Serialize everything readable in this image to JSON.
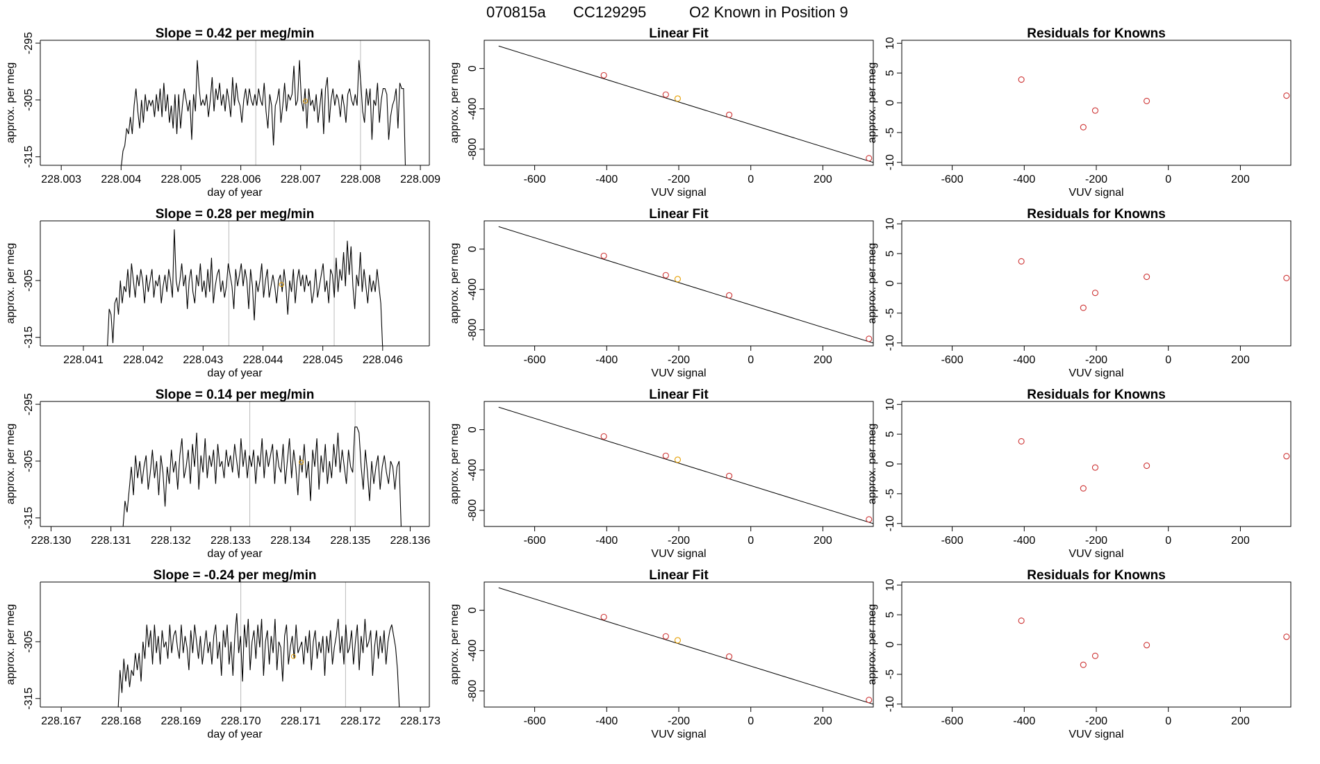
{
  "header": {
    "run_id": "070815a",
    "tank_id": "CC129295",
    "title_text": "O2 Known in Position  9"
  },
  "colors": {
    "line": "#000000",
    "frame": "#000000",
    "vline": "#bbbbbb",
    "known_point": "#cd3333",
    "position_point": "#e69f00"
  },
  "chart_data": [
    {
      "type": "line",
      "title": "Slope =  0.42  per meg/min",
      "xlabel": "day of year",
      "ylabel": "approx. per meg",
      "xlim": [
        228.00265,
        228.00915
      ],
      "ylim": [
        -316.5,
        -294.5
      ],
      "xticks": [
        "228.003",
        "228.004",
        "228.005",
        "228.006",
        "228.007",
        "228.008",
        "228.009"
      ],
      "yticks": [
        "-295",
        "-305",
        "-315"
      ],
      "vlines": [
        228.00625,
        228.008
      ],
      "highlight_point": {
        "x": 228.00708,
        "y": -305.2
      },
      "series": [
        {
          "x_start": 228.004,
          "x_end": 228.00875,
          "values": [
            -317,
            -314,
            -313,
            -310,
            -311,
            -308,
            -311,
            -306,
            -303,
            -307,
            -310,
            -305,
            -309,
            -304,
            -307,
            -305,
            -306,
            -305,
            -308,
            -304,
            -307,
            -303,
            -308,
            -302,
            -307,
            -304,
            -309,
            -306,
            -310,
            -304,
            -311,
            -304,
            -310,
            -306,
            -303,
            -305,
            -307,
            -305,
            -312,
            -304,
            -307,
            -298,
            -303,
            -306,
            -305,
            -306,
            -304,
            -308,
            -305,
            -301,
            -307,
            -303,
            -305,
            -302,
            -306,
            -304,
            -307,
            -303,
            -305,
            -308,
            -301,
            -306,
            -302,
            -305,
            -306,
            -309,
            -305,
            -303,
            -306,
            -303,
            -305,
            -306,
            -304,
            -306,
            -303,
            -305,
            -306,
            -302,
            -307,
            -310,
            -304,
            -306,
            -313,
            -306,
            -305,
            -303,
            -309,
            -306,
            -302,
            -307,
            -304,
            -305,
            -304,
            -299,
            -306,
            -305,
            -298,
            -305,
            -307,
            -303,
            -310,
            -303,
            -306,
            -305,
            -307,
            -304,
            -309,
            -306,
            -303,
            -311,
            -303,
            -301,
            -309,
            -305,
            -303,
            -306,
            -304,
            -305,
            -308,
            -304,
            -306,
            -309,
            -304,
            -303,
            -305,
            -306,
            -304,
            -306,
            -298,
            -302,
            -307,
            -309,
            -303,
            -306,
            -303,
            -312,
            -305,
            -306,
            -302,
            -309,
            -305,
            -303,
            -303,
            -304,
            -312,
            -308,
            -306,
            -305,
            -303,
            -310,
            -302,
            -303,
            -303,
            -317
          ]
        }
      ]
    },
    {
      "type": "scatter",
      "title": "Linear Fit",
      "xlabel": "VUV signal",
      "ylabel": "approx. per meg",
      "xlim": [
        -740,
        340
      ],
      "ylim": [
        -960,
        280
      ],
      "xticks": [
        "-600",
        "-400",
        "-200",
        "0",
        "200"
      ],
      "yticks": [
        "0",
        "-400",
        "-800"
      ],
      "fit_line": {
        "x": [
          -700,
          340
        ],
        "y": [
          223,
          -932
        ]
      },
      "points": {
        "x": [
          -408,
          -236,
          -203,
          -60,
          328
        ],
        "y": [
          -67,
          -259,
          -298,
          -459,
          -890
        ]
      },
      "highlight_index": 2
    },
    {
      "type": "scatter",
      "title": "Residuals for Knowns",
      "xlabel": "VUV signal",
      "ylabel": "approx. per meg",
      "xlim": [
        -740,
        340
      ],
      "ylim": [
        -10.5,
        10.5
      ],
      "xticks": [
        "-600",
        "-400",
        "-200",
        "0",
        "200"
      ],
      "yticks": [
        "10",
        "5",
        "0",
        "-5",
        "-10"
      ],
      "points": {
        "x": [
          -408,
          -236,
          -203,
          -60,
          328
        ],
        "y": [
          3.9,
          -4.1,
          -1.3,
          0.3,
          1.2
        ]
      }
    },
    {
      "type": "line",
      "title": "Slope =  0.28  per meg/min",
      "xlabel": "day of year",
      "ylabel": "approx. per meg",
      "xlim": [
        228.04028,
        228.04678
      ],
      "ylim": [
        -316.5,
        -294.5
      ],
      "xticks": [
        "228.041",
        "228.042",
        "228.043",
        "228.044",
        "228.045",
        "228.046"
      ],
      "yticks": [
        "-305",
        "-315"
      ],
      "vlines": [
        228.04343,
        228.04519
      ],
      "highlight_point": {
        "x": 228.04431,
        "y": -305.7
      },
      "series": [
        {
          "x_start": 228.0414,
          "x_end": 228.046,
          "values": [
            -317,
            -310,
            -311,
            -316,
            -309,
            -308,
            -311,
            -305,
            -309,
            -306,
            -307,
            -303,
            -308,
            -302,
            -305,
            -308,
            -304,
            -306,
            -303,
            -305,
            -309,
            -304,
            -307,
            -305,
            -303,
            -308,
            -305,
            -306,
            -304,
            -309,
            -306,
            -304,
            -307,
            -303,
            -305,
            -308,
            -296,
            -305,
            -307,
            -305,
            -302,
            -306,
            -304,
            -310,
            -305,
            -303,
            -307,
            -309,
            -304,
            -306,
            -302,
            -307,
            -305,
            -308,
            -303,
            -307,
            -301,
            -309,
            -306,
            -304,
            -303,
            -307,
            -305,
            -308,
            -306,
            -302,
            -304,
            -306,
            -310,
            -303,
            -306,
            -304,
            -302,
            -306,
            -303,
            -305,
            -310,
            -303,
            -306,
            -312,
            -305,
            -307,
            -305,
            -302,
            -308,
            -305,
            -303,
            -308,
            -306,
            -304,
            -306,
            -309,
            -305,
            -304,
            -307,
            -303,
            -306,
            -311,
            -305,
            -307,
            -303,
            -309,
            -305,
            -303,
            -306,
            -304,
            -307,
            -304,
            -306,
            -305,
            -309,
            -307,
            -303,
            -308,
            -306,
            -304,
            -302,
            -307,
            -305,
            -309,
            -303,
            -304,
            -308,
            -301,
            -307,
            -303,
            -305,
            -300,
            -306,
            -298,
            -304,
            -299,
            -306,
            -310,
            -304,
            -306,
            -300,
            -307,
            -303,
            -306,
            -309,
            -304,
            -307,
            -305,
            -307,
            -303,
            -306,
            -309,
            -317
          ]
        }
      ]
    },
    {
      "type": "scatter",
      "title": "Linear Fit",
      "xlabel": "VUV signal",
      "ylabel": "approx. per meg",
      "xlim": [
        -740,
        340
      ],
      "ylim": [
        -960,
        280
      ],
      "xticks": [
        "-600",
        "-400",
        "-200",
        "0",
        "200"
      ],
      "yticks": [
        "0",
        "-400",
        "-800"
      ],
      "fit_line": {
        "x": [
          -700,
          340
        ],
        "y": [
          223,
          -932
        ]
      },
      "points": {
        "x": [
          -408,
          -236,
          -203,
          -60,
          328
        ],
        "y": [
          -67,
          -259,
          -298,
          -459,
          -890
        ]
      },
      "highlight_index": 2
    },
    {
      "type": "scatter",
      "title": "Residuals for Knowns",
      "xlabel": "VUV signal",
      "ylabel": "approx. per meg",
      "xlim": [
        -740,
        340
      ],
      "ylim": [
        -10.5,
        10.5
      ],
      "xticks": [
        "-600",
        "-400",
        "-200",
        "0",
        "200"
      ],
      "yticks": [
        "10",
        "5",
        "0",
        "-5",
        "-10"
      ],
      "points": {
        "x": [
          -408,
          -236,
          -203,
          -60,
          328
        ],
        "y": [
          3.7,
          -4.1,
          -1.6,
          1.1,
          0.9
        ]
      }
    },
    {
      "type": "line",
      "title": "Slope =  0.14  per meg/min",
      "xlabel": "day of year",
      "ylabel": "approx. per meg",
      "xlim": [
        228.12982,
        228.13632
      ],
      "ylim": [
        -316.5,
        -294.5
      ],
      "xticks": [
        "228.130",
        "228.131",
        "228.132",
        "228.133",
        "228.134",
        "228.135",
        "228.136"
      ],
      "yticks": [
        "-295",
        "-305",
        "-315"
      ],
      "vlines": [
        228.13332,
        228.13508
      ],
      "highlight_point": {
        "x": 228.13418,
        "y": -305.2
      },
      "series": [
        {
          "x_start": 228.1312,
          "x_end": 228.13585,
          "values": [
            -317,
            -312,
            -314,
            -310,
            -306,
            -311,
            -304,
            -308,
            -305,
            -309,
            -306,
            -304,
            -310,
            -307,
            -303,
            -308,
            -305,
            -311,
            -304,
            -307,
            -313,
            -306,
            -309,
            -303,
            -307,
            -305,
            -310,
            -304,
            -301,
            -308,
            -306,
            -303,
            -309,
            -302,
            -306,
            -300,
            -310,
            -304,
            -307,
            -301,
            -308,
            -304,
            -306,
            -303,
            -309,
            -302,
            -306,
            -305,
            -308,
            -303,
            -306,
            -304,
            -307,
            -302,
            -305,
            -308,
            -301,
            -306,
            -303,
            -308,
            -304,
            -306,
            -303,
            -309,
            -304,
            -306,
            -301,
            -308,
            -303,
            -306,
            -304,
            -302,
            -309,
            -303,
            -306,
            -307,
            -302,
            -309,
            -305,
            -301,
            -308,
            -303,
            -306,
            -311,
            -304,
            -307,
            -302,
            -308,
            -305,
            -312,
            -303,
            -306,
            -301,
            -310,
            -304,
            -307,
            -302,
            -309,
            -305,
            -308,
            -302,
            -306,
            -300,
            -307,
            -303,
            -306,
            -309,
            -303,
            -306,
            -307,
            -299,
            -299,
            -300,
            -306,
            -310,
            -303,
            -307,
            -312,
            -305,
            -309,
            -306,
            -304,
            -310,
            -306,
            -304,
            -307,
            -309,
            -305,
            -306,
            -310,
            -306,
            -305,
            -317
          ]
        }
      ]
    },
    {
      "type": "scatter",
      "title": "Linear Fit",
      "xlabel": "VUV signal",
      "ylabel": "approx. per meg",
      "xlim": [
        -740,
        340
      ],
      "ylim": [
        -960,
        280
      ],
      "xticks": [
        "-600",
        "-400",
        "-200",
        "0",
        "200"
      ],
      "yticks": [
        "0",
        "-400",
        "-800"
      ],
      "fit_line": {
        "x": [
          -700,
          340
        ],
        "y": [
          223,
          -932
        ]
      },
      "points": {
        "x": [
          -408,
          -236,
          -203,
          -60,
          328
        ],
        "y": [
          -67,
          -259,
          -298,
          -459,
          -890
        ]
      },
      "highlight_index": 2
    },
    {
      "type": "scatter",
      "title": "Residuals for Knowns",
      "xlabel": "VUV signal",
      "ylabel": "approx. per meg",
      "xlim": [
        -740,
        340
      ],
      "ylim": [
        -10.5,
        10.5
      ],
      "xticks": [
        "-600",
        "-400",
        "-200",
        "0",
        "200"
      ],
      "yticks": [
        "10",
        "5",
        "0",
        "-5",
        "-10"
      ],
      "points": {
        "x": [
          -408,
          -236,
          -203,
          -60,
          328
        ],
        "y": [
          3.8,
          -4.1,
          -0.6,
          -0.3,
          1.3
        ]
      }
    },
    {
      "type": "line",
      "title": "Slope =  -0.24  per meg/min",
      "xlabel": "day of year",
      "ylabel": "approx. per meg",
      "xlim": [
        228.16665,
        228.17315
      ],
      "ylim": [
        -316.5,
        -294.5
      ],
      "xticks": [
        "228.167",
        "228.168",
        "228.169",
        "228.170",
        "228.171",
        "228.172",
        "228.173"
      ],
      "yticks": [
        "-305",
        "-315"
      ],
      "vlines": [
        228.17,
        228.17175
      ],
      "highlight_point": {
        "x": 228.17088,
        "y": -307.6
      },
      "series": [
        {
          "x_start": 228.16795,
          "x_end": 228.17265,
          "values": [
            -317,
            -310,
            -314,
            -308,
            -312,
            -309,
            -313,
            -310,
            -311,
            -307,
            -310,
            -307,
            -312,
            -305,
            -308,
            -302,
            -306,
            -303,
            -309,
            -302,
            -307,
            -304,
            -309,
            -303,
            -306,
            -305,
            -308,
            -302,
            -307,
            -304,
            -303,
            -306,
            -308,
            -302,
            -307,
            -304,
            -306,
            -310,
            -303,
            -307,
            -302,
            -305,
            -308,
            -304,
            -309,
            -306,
            -303,
            -307,
            -305,
            -309,
            -304,
            -302,
            -308,
            -305,
            -311,
            -303,
            -306,
            -302,
            -309,
            -305,
            -311,
            -304,
            -300,
            -307,
            -304,
            -312,
            -302,
            -306,
            -301,
            -310,
            -305,
            -303,
            -308,
            -302,
            -306,
            -301,
            -311,
            -305,
            -303,
            -309,
            -304,
            -307,
            -301,
            -310,
            -305,
            -306,
            -312,
            -304,
            -302,
            -309,
            -306,
            -304,
            -308,
            -302,
            -307,
            -306,
            -305,
            -309,
            -304,
            -307,
            -303,
            -310,
            -305,
            -303,
            -308,
            -305,
            -307,
            -304,
            -311,
            -304,
            -307,
            -303,
            -309,
            -306,
            -304,
            -301,
            -307,
            -304,
            -309,
            -302,
            -307,
            -306,
            -303,
            -309,
            -305,
            -302,
            -310,
            -304,
            -307,
            -301,
            -306,
            -305,
            -303,
            -311,
            -306,
            -303,
            -308,
            -304,
            -307,
            -303,
            -309,
            -305,
            -303,
            -302,
            -304,
            -306,
            -310,
            -317
          ]
        }
      ]
    },
    {
      "type": "scatter",
      "title": "Linear Fit",
      "xlabel": "VUV signal",
      "ylabel": "approx. per meg",
      "xlim": [
        -740,
        340
      ],
      "ylim": [
        -960,
        280
      ],
      "xticks": [
        "-600",
        "-400",
        "-200",
        "0",
        "200"
      ],
      "yticks": [
        "0",
        "-400",
        "-800"
      ],
      "fit_line": {
        "x": [
          -700,
          340
        ],
        "y": [
          223,
          -932
        ]
      },
      "points": {
        "x": [
          -408,
          -236,
          -203,
          -60,
          328
        ],
        "y": [
          -67,
          -259,
          -298,
          -459,
          -890
        ]
      },
      "highlight_index": 2
    },
    {
      "type": "scatter",
      "title": "Residuals for Knowns",
      "xlabel": "VUV signal",
      "ylabel": "approx. per meg",
      "xlim": [
        -740,
        340
      ],
      "ylim": [
        -10.5,
        10.5
      ],
      "xticks": [
        "-600",
        "-400",
        "-200",
        "0",
        "200"
      ],
      "yticks": [
        "10",
        "5",
        "0",
        "-5",
        "-10"
      ],
      "points": {
        "x": [
          -408,
          -236,
          -203,
          -60,
          328
        ],
        "y": [
          4.0,
          -3.4,
          -1.9,
          -0.1,
          1.3
        ]
      }
    }
  ]
}
